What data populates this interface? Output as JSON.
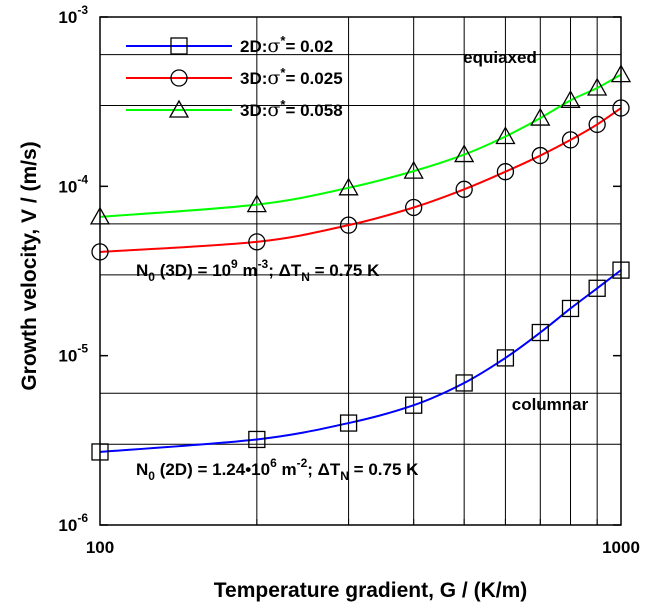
{
  "chart_data": {
    "type": "line",
    "xscale": "log",
    "yscale": "log",
    "xlim": [
      100,
      1000
    ],
    "ylim": [
      1e-06,
      0.001
    ],
    "xlabel": "Temperature gradient, G / (K/m)",
    "ylabel": "Growth velocity, V / (m/s)",
    "x_tick_labels": [
      {
        "value": 100,
        "label": "100"
      },
      {
        "value": 1000,
        "label": "1000"
      }
    ],
    "y_tick_labels": [
      {
        "value": 0.001,
        "base": "10",
        "exp": "-3"
      },
      {
        "value": 0.0001,
        "base": "10",
        "exp": "-4"
      },
      {
        "value": 1e-05,
        "base": "10",
        "exp": "-5"
      },
      {
        "value": 1e-06,
        "base": "10",
        "exp": "-6"
      }
    ],
    "grid": true,
    "legend": "top-left",
    "series": [
      {
        "name": "2D:σ* = 0.02",
        "name_prefix": "2D:",
        "name_sigma": "σ",
        "name_star": "*",
        "name_suffix": "= 0.02",
        "color": "#0000ff",
        "marker": "square",
        "x": [
          100,
          200,
          300,
          400,
          500,
          600,
          700,
          800,
          900,
          1000
        ],
        "y": [
          2.7e-06,
          3.2e-06,
          4e-06,
          5.1e-06,
          6.9e-06,
          9.7e-06,
          1.37e-05,
          1.9e-05,
          2.5e-05,
          3.2e-05
        ]
      },
      {
        "name": "3D:σ* = 0.025",
        "name_prefix": "3D:",
        "name_sigma": "σ",
        "name_star": "*",
        "name_suffix": "= 0.025",
        "color": "#ff0000",
        "marker": "circle",
        "x": [
          100,
          200,
          300,
          400,
          500,
          600,
          700,
          800,
          900,
          1000
        ],
        "y": [
          4.1e-05,
          4.7e-05,
          5.9e-05,
          7.5e-05,
          9.6e-05,
          0.000122,
          0.000152,
          0.000188,
          0.000232,
          0.00029
        ]
      },
      {
        "name": "3D:σ* = 0.058",
        "name_prefix": "3D:",
        "name_sigma": "σ",
        "name_star": "*",
        "name_suffix": "= 0.058",
        "color": "#00ff00",
        "marker": "triangle",
        "x": [
          100,
          200,
          300,
          400,
          500,
          600,
          700,
          800,
          900,
          1000
        ],
        "y": [
          6.6e-05,
          7.8e-05,
          9.8e-05,
          0.000123,
          0.000154,
          0.000197,
          0.000253,
          0.000322,
          0.000381,
          0.000457
        ]
      }
    ],
    "annotations": {
      "equiaxed": "equiaxed",
      "columnar": "columnar",
      "n0_3d": {
        "p1": "N",
        "p1sub": "0",
        "p2": " (3D) = 10",
        "p2sup": "9",
        "p3": " m",
        "p3sup": "-3",
        "p4": "; ΔT",
        "p4sub": "N",
        "p5": " = 0.75 K"
      },
      "n0_2d": {
        "p1": "N",
        "p1sub": "0",
        "p2": " (2D) = 1.24•10",
        "p2sup": "6",
        "p3": " m",
        "p3sup": "-2",
        "p4": "; ΔT",
        "p4sub": "N",
        "p5": " = 0.75 K"
      }
    }
  }
}
